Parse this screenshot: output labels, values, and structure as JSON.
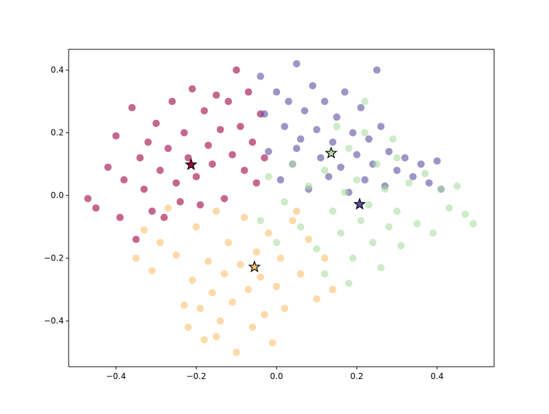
{
  "chart_data": {
    "type": "scatter",
    "xlim": [
      -0.518,
      0.542
    ],
    "ylim": [
      -0.546,
      0.466
    ],
    "xticks": [
      {
        "value": -0.4,
        "label": "−0.4"
      },
      {
        "value": -0.2,
        "label": "−0.2"
      },
      {
        "value": 0,
        "label": "0.0"
      },
      0.2,
      0.4
    ],
    "yticks": [
      {
        "value": -0.4,
        "label": "−0.4"
      },
      {
        "value": -0.2,
        "label": "−0.2"
      },
      {
        "value": 0,
        "label": "0.0"
      },
      0.2,
      0.4
    ],
    "grid": false,
    "series": [
      {
        "color": "#9e0142",
        "marker": "circle",
        "x": [
          -0.47,
          -0.45,
          -0.42,
          -0.4,
          -0.39,
          -0.38,
          -0.36,
          -0.35,
          -0.34,
          -0.33,
          -0.32,
          -0.31,
          -0.3,
          -0.29,
          -0.28,
          -0.27,
          -0.26,
          -0.25,
          -0.24,
          -0.23,
          -0.22,
          -0.21,
          -0.2,
          -0.19,
          -0.18,
          -0.17,
          -0.16,
          -0.15,
          -0.14,
          -0.13,
          -0.12,
          -0.11,
          -0.1,
          -0.09,
          -0.08,
          -0.07,
          -0.06,
          -0.05,
          -0.04,
          -0.03
        ],
        "values": [
          -0.01,
          -0.04,
          0.09,
          0.19,
          -0.07,
          0.05,
          0.28,
          -0.14,
          0.12,
          0.02,
          0.17,
          -0.05,
          0.23,
          0.08,
          -0.07,
          0.15,
          0.3,
          0.04,
          -0.02,
          0.2,
          0.12,
          0.34,
          0.06,
          -0.03,
          0.27,
          0.16,
          0.1,
          0.32,
          0.21,
          -0.01,
          0.3,
          0.13,
          0.4,
          0.22,
          0.08,
          0.33,
          0.17,
          0.04,
          0.26,
          0.12
        ]
      },
      {
        "color": "#5e4fa2",
        "marker": "circle",
        "x": [
          -0.04,
          -0.03,
          -0.02,
          0.0,
          0.01,
          0.02,
          0.03,
          0.04,
          0.05,
          0.06,
          0.07,
          0.08,
          0.09,
          0.1,
          0.11,
          0.12,
          0.13,
          0.14,
          0.15,
          0.16,
          0.17,
          0.18,
          0.19,
          0.2,
          0.21,
          0.22,
          0.23,
          0.24,
          0.25,
          0.26,
          0.27,
          0.28,
          0.3,
          0.32,
          0.34,
          0.36,
          0.38,
          0.4,
          0.41,
          0.05
        ],
        "values": [
          0.38,
          0.26,
          0.14,
          0.33,
          0.05,
          0.22,
          0.3,
          0.1,
          0.42,
          0.18,
          0.27,
          0.02,
          0.35,
          0.21,
          0.12,
          0.3,
          0.06,
          0.17,
          0.25,
          0.09,
          0.33,
          0.01,
          0.2,
          0.13,
          0.28,
          0.05,
          0.18,
          0.1,
          0.4,
          0.22,
          0.03,
          0.14,
          0.08,
          0.12,
          0.06,
          0.1,
          0.04,
          0.11,
          0.02,
          0.15
        ]
      },
      {
        "color": "#abdda4",
        "marker": "circle",
        "x": [
          -0.04,
          -0.02,
          0.0,
          0.02,
          0.04,
          0.06,
          0.08,
          0.1,
          0.12,
          0.14,
          0.15,
          0.16,
          0.17,
          0.18,
          0.19,
          0.2,
          0.21,
          0.22,
          0.23,
          0.24,
          0.25,
          0.26,
          0.27,
          0.28,
          0.29,
          0.3,
          0.31,
          0.33,
          0.35,
          0.37,
          0.39,
          0.41,
          0.43,
          0.45,
          0.47,
          0.49,
          0.12,
          0.18,
          0.22,
          0.3
        ],
        "values": [
          -0.08,
          0.06,
          -0.15,
          -0.02,
          0.1,
          -0.1,
          0.03,
          -0.17,
          0.08,
          -0.05,
          0.22,
          -0.12,
          0.01,
          0.15,
          -0.2,
          0.05,
          -0.08,
          0.3,
          -0.03,
          -0.15,
          0.1,
          -0.23,
          0.02,
          -0.1,
          0.18,
          -0.05,
          -0.16,
          0.04,
          -0.09,
          0.07,
          -0.12,
          0.02,
          -0.04,
          0.03,
          -0.06,
          -0.09,
          -0.25,
          -0.28,
          0.2,
          0.12
        ]
      },
      {
        "color": "#fdbf6f",
        "marker": "circle",
        "x": [
          -0.35,
          -0.33,
          -0.31,
          -0.29,
          -0.27,
          -0.25,
          -0.23,
          -0.22,
          -0.21,
          -0.2,
          -0.19,
          -0.18,
          -0.17,
          -0.16,
          -0.15,
          -0.14,
          -0.13,
          -0.12,
          -0.11,
          -0.1,
          -0.09,
          -0.08,
          -0.07,
          -0.06,
          -0.05,
          -0.04,
          -0.03,
          -0.02,
          -0.01,
          0.0,
          0.01,
          0.02,
          0.04,
          0.06,
          0.08,
          0.1,
          0.12,
          0.14,
          0.05,
          -0.15
        ],
        "values": [
          -0.2,
          -0.11,
          -0.24,
          -0.15,
          -0.04,
          -0.19,
          -0.35,
          -0.42,
          -0.27,
          -0.1,
          -0.36,
          -0.46,
          -0.21,
          -0.31,
          -0.05,
          -0.4,
          -0.25,
          -0.15,
          -0.34,
          -0.5,
          -0.22,
          -0.07,
          -0.3,
          -0.42,
          -0.18,
          -0.26,
          -0.38,
          -0.12,
          -0.47,
          -0.29,
          -0.2,
          -0.36,
          -0.08,
          -0.25,
          -0.14,
          -0.33,
          -0.2,
          -0.3,
          -0.05,
          -0.45
        ]
      },
      {
        "marker": "star",
        "colors": [
          "#9e0142",
          "#abdda4",
          "#5e4fa2",
          "#fdbf6f"
        ],
        "x": [
          -0.213,
          0.136,
          0.207,
          -0.055
        ],
        "values": [
          0.098,
          0.135,
          -0.028,
          -0.228
        ]
      }
    ]
  }
}
